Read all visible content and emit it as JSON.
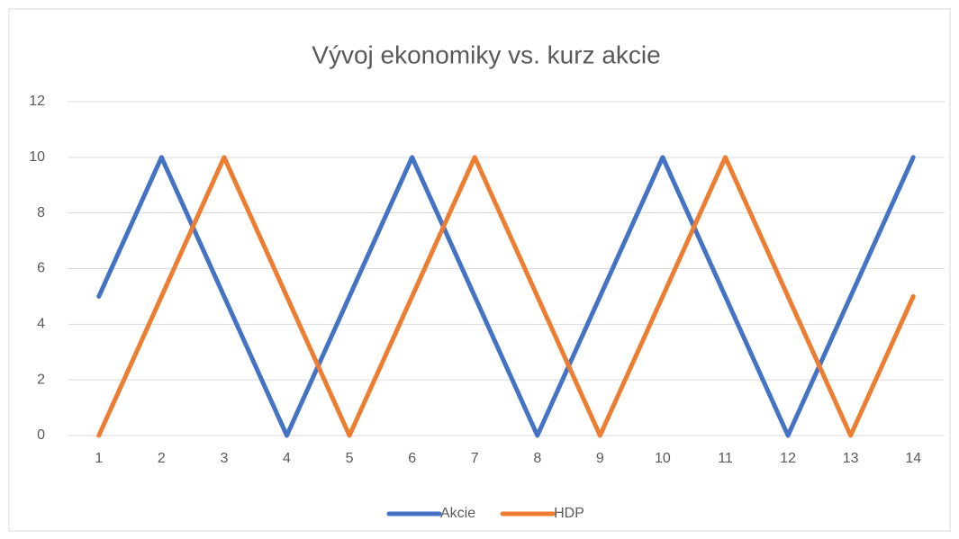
{
  "chart_data": {
    "type": "line",
    "title": "Vývoj ekonomiky vs. kurz akcie",
    "categories": [
      "1",
      "2",
      "3",
      "4",
      "5",
      "6",
      "7",
      "8",
      "9",
      "10",
      "11",
      "12",
      "13",
      "14"
    ],
    "series": [
      {
        "name": "Akcie",
        "color": "#4472c4",
        "values": [
          5,
          10,
          5,
          0,
          5,
          10,
          5,
          0,
          5,
          10,
          5,
          0,
          5,
          10
        ]
      },
      {
        "name": "HDP",
        "color": "#ed7d31",
        "values": [
          0,
          5,
          10,
          5,
          0,
          5,
          10,
          5,
          0,
          5,
          10,
          5,
          0,
          5
        ]
      }
    ],
    "ylim": [
      0,
      12
    ],
    "yticks": [
      0,
      2,
      4,
      6,
      8,
      10,
      12
    ],
    "grid": true,
    "legend": "bottom"
  }
}
